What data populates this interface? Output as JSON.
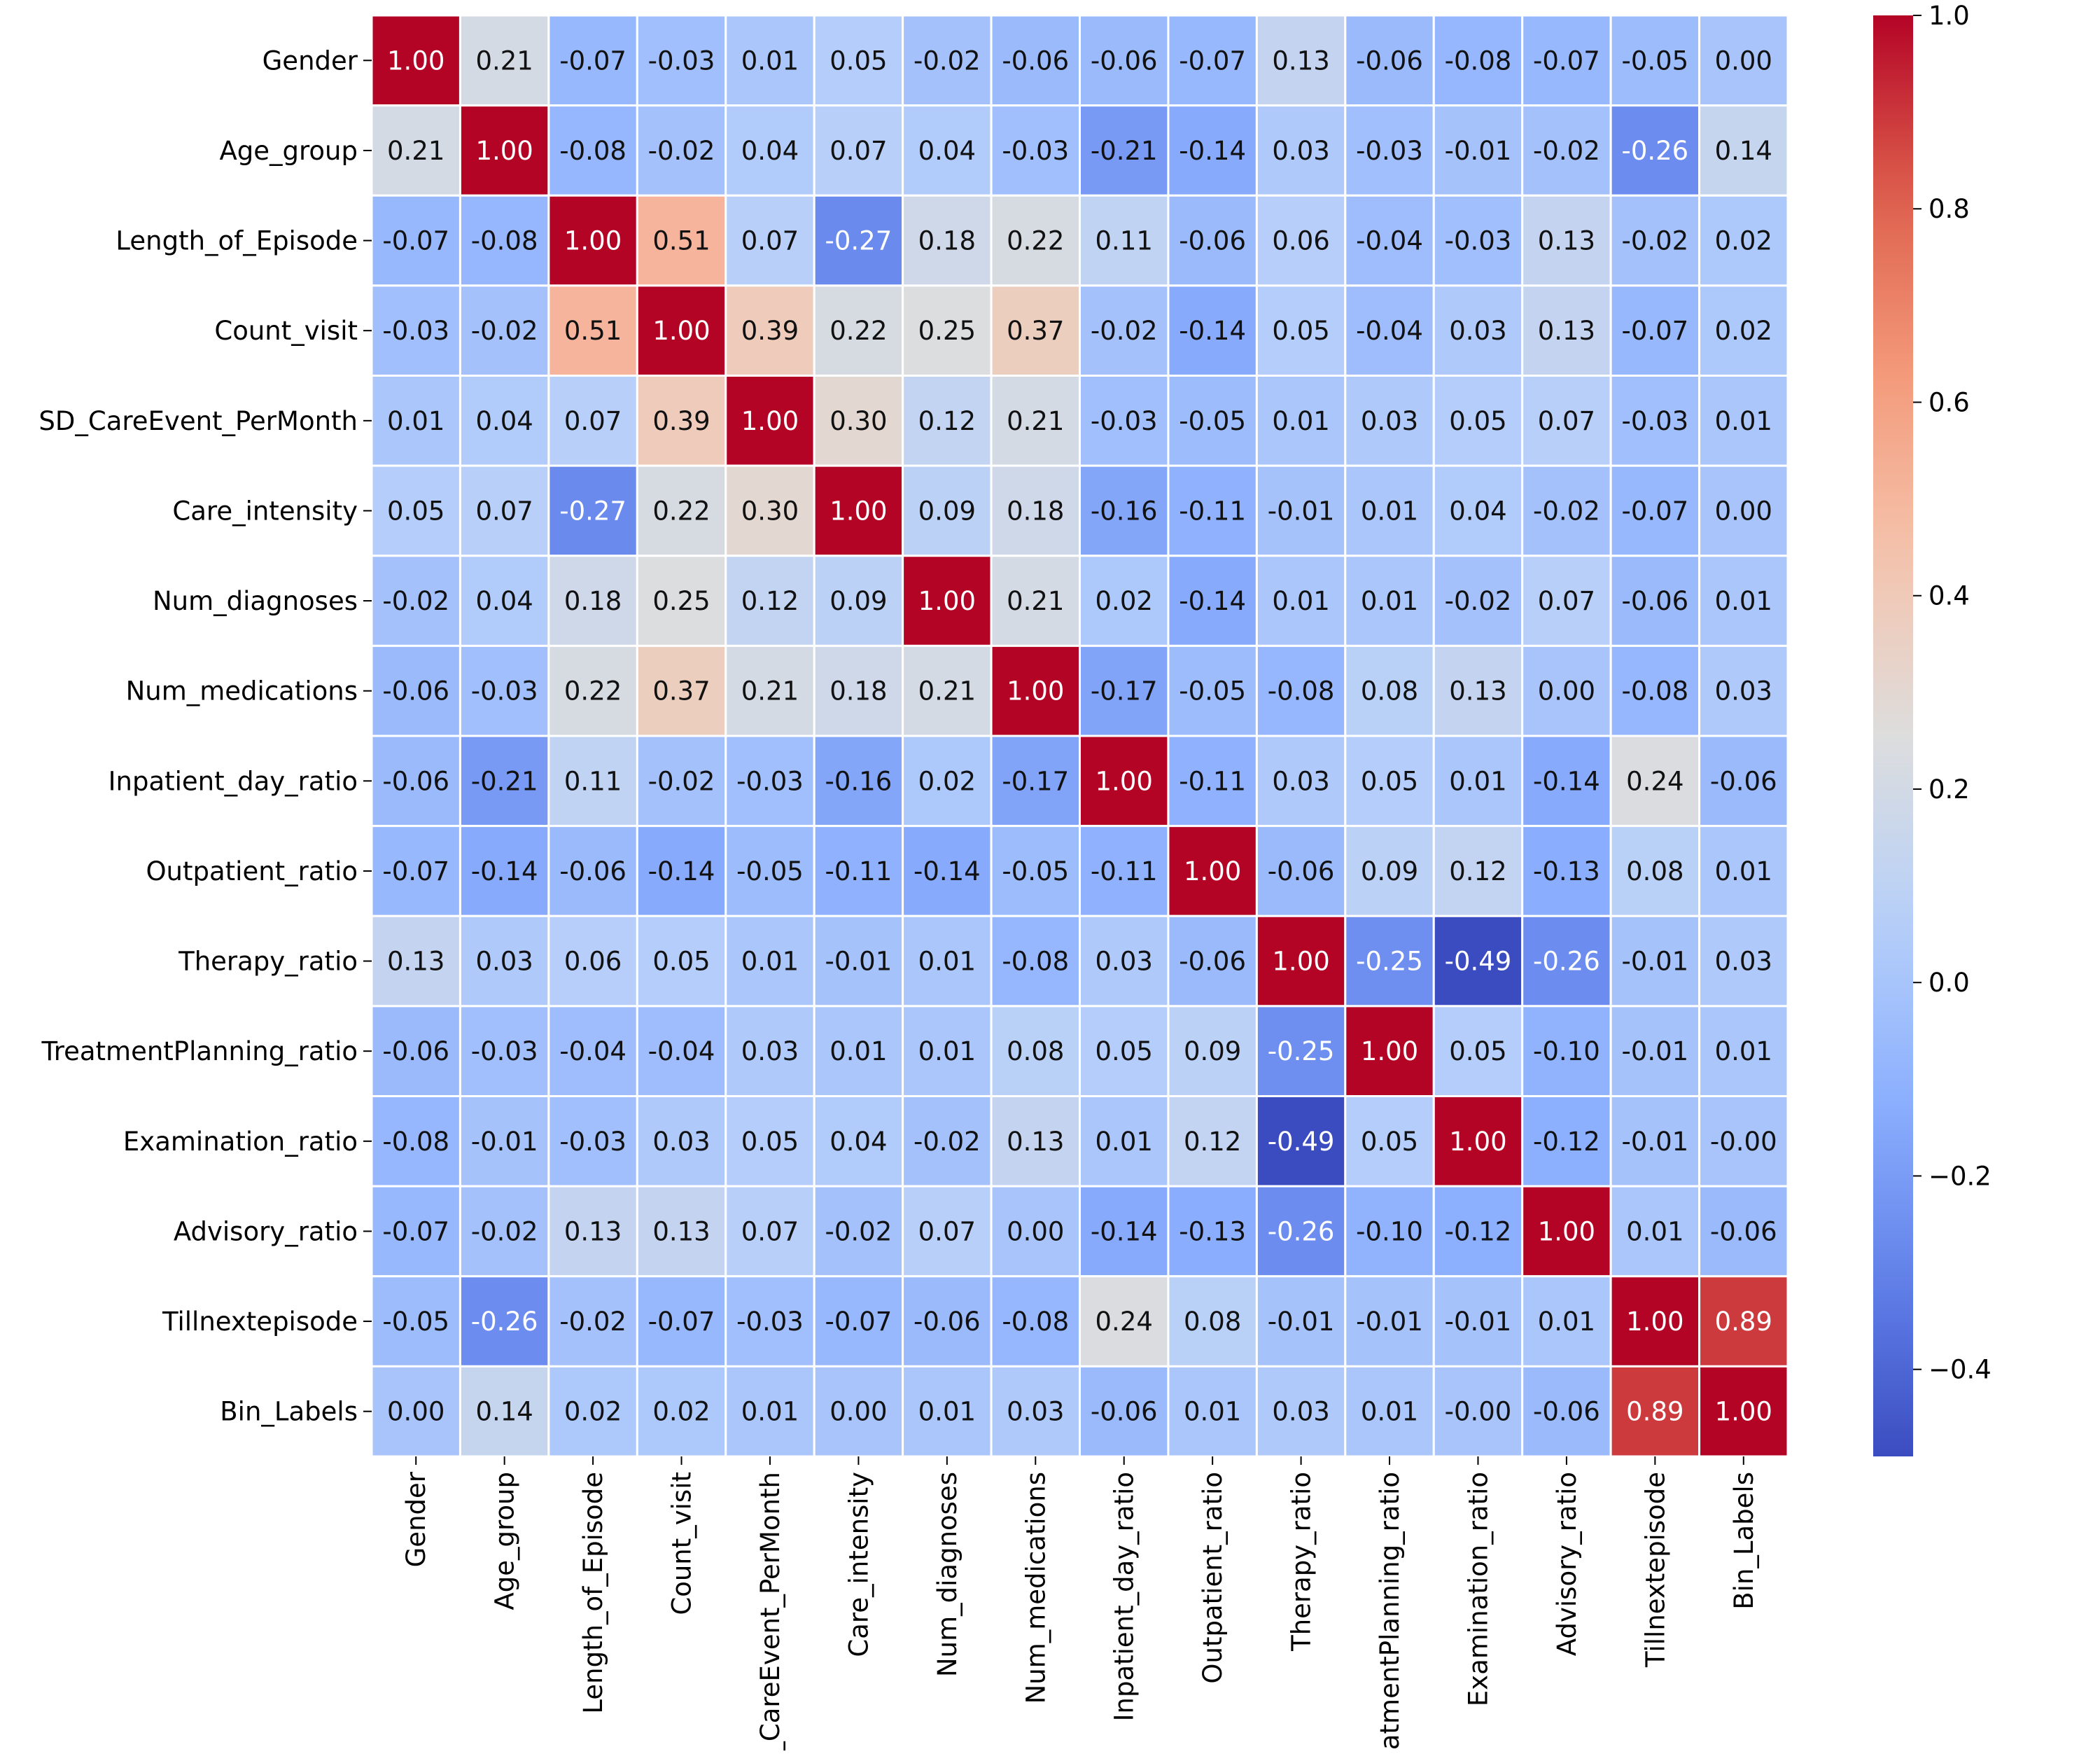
{
  "chart_data": {
    "type": "heatmap",
    "title": "",
    "xlabel": "",
    "ylabel": "",
    "value_format": "2 decimals",
    "colormap": "coolwarm",
    "vmin": -0.49,
    "vmax": 1.0,
    "colorbar_ticks": [
      "1.0",
      "0.8",
      "0.6",
      "0.4",
      "0.2",
      "0.0",
      "−0.2",
      "−0.4"
    ],
    "colorbar_tick_values": [
      1.0,
      0.8,
      0.6,
      0.4,
      0.2,
      0.0,
      -0.2,
      -0.4
    ],
    "labels": [
      "Gender",
      "Age_group",
      "Length_of_Episode",
      "Count_visit",
      "SD_CareEvent_PerMonth",
      "Care_intensity",
      "Num_diagnoses",
      "Num_medications",
      "Inpatient_day_ratio",
      "Outpatient_ratio",
      "Therapy_ratio",
      "TreatmentPlanning_ratio",
      "Examination_ratio",
      "Advisory_ratio",
      "Tillnextepisode",
      "Bin_Labels"
    ],
    "matrix": [
      [
        1.0,
        0.21,
        -0.07,
        -0.03,
        0.01,
        0.05,
        -0.02,
        -0.06,
        -0.06,
        -0.07,
        0.13,
        -0.06,
        -0.08,
        -0.07,
        -0.05,
        0.0
      ],
      [
        0.21,
        1.0,
        -0.08,
        -0.02,
        0.04,
        0.07,
        0.04,
        -0.03,
        -0.21,
        -0.14,
        0.03,
        -0.03,
        -0.01,
        -0.02,
        -0.26,
        0.14
      ],
      [
        -0.07,
        -0.08,
        1.0,
        0.51,
        0.07,
        -0.27,
        0.18,
        0.22,
        0.11,
        -0.06,
        0.06,
        -0.04,
        -0.03,
        0.13,
        -0.02,
        0.02
      ],
      [
        -0.03,
        -0.02,
        0.51,
        1.0,
        0.39,
        0.22,
        0.25,
        0.37,
        -0.02,
        -0.14,
        0.05,
        -0.04,
        0.03,
        0.13,
        -0.07,
        0.02
      ],
      [
        0.01,
        0.04,
        0.07,
        0.39,
        1.0,
        0.3,
        0.12,
        0.21,
        -0.03,
        -0.05,
        0.01,
        0.03,
        0.05,
        0.07,
        -0.03,
        0.01
      ],
      [
        0.05,
        0.07,
        -0.27,
        0.22,
        0.3,
        1.0,
        0.09,
        0.18,
        -0.16,
        -0.11,
        -0.01,
        0.01,
        0.04,
        -0.02,
        -0.07,
        0.0
      ],
      [
        -0.02,
        0.04,
        0.18,
        0.25,
        0.12,
        0.09,
        1.0,
        0.21,
        0.02,
        -0.14,
        0.01,
        0.01,
        -0.02,
        0.07,
        -0.06,
        0.01
      ],
      [
        -0.06,
        -0.03,
        0.22,
        0.37,
        0.21,
        0.18,
        0.21,
        1.0,
        -0.17,
        -0.05,
        -0.08,
        0.08,
        0.13,
        0.0,
        -0.08,
        0.03
      ],
      [
        -0.06,
        -0.21,
        0.11,
        -0.02,
        -0.03,
        -0.16,
        0.02,
        -0.17,
        1.0,
        -0.11,
        0.03,
        0.05,
        0.01,
        -0.14,
        0.24,
        -0.06
      ],
      [
        -0.07,
        -0.14,
        -0.06,
        -0.14,
        -0.05,
        -0.11,
        -0.14,
        -0.05,
        -0.11,
        1.0,
        -0.06,
        0.09,
        0.12,
        -0.13,
        0.08,
        0.01
      ],
      [
        0.13,
        0.03,
        0.06,
        0.05,
        0.01,
        -0.01,
        0.01,
        -0.08,
        0.03,
        -0.06,
        1.0,
        -0.25,
        -0.49,
        -0.26,
        -0.01,
        0.03
      ],
      [
        -0.06,
        -0.03,
        -0.04,
        -0.04,
        0.03,
        0.01,
        0.01,
        0.08,
        0.05,
        0.09,
        -0.25,
        1.0,
        0.05,
        -0.1,
        -0.01,
        0.01
      ],
      [
        -0.08,
        -0.01,
        -0.03,
        0.03,
        0.05,
        0.04,
        -0.02,
        0.13,
        0.01,
        0.12,
        -0.49,
        0.05,
        1.0,
        -0.12,
        -0.01,
        -0.0
      ],
      [
        -0.07,
        -0.02,
        0.13,
        0.13,
        0.07,
        -0.02,
        0.07,
        0.0,
        -0.14,
        -0.13,
        -0.26,
        -0.1,
        -0.12,
        1.0,
        0.01,
        -0.06
      ],
      [
        -0.05,
        -0.26,
        -0.02,
        -0.07,
        -0.03,
        -0.07,
        -0.06,
        -0.08,
        0.24,
        0.08,
        -0.01,
        -0.01,
        -0.01,
        0.01,
        1.0,
        0.89
      ],
      [
        0.0,
        0.14,
        0.02,
        0.02,
        0.01,
        0.0,
        0.01,
        0.03,
        -0.06,
        0.01,
        0.03,
        0.01,
        -0.0,
        -0.06,
        0.89,
        1.0
      ]
    ],
    "cell_text": [
      [
        "1.00",
        "0.21",
        "-0.07",
        "-0.03",
        "0.01",
        "0.05",
        "-0.02",
        "-0.06",
        "-0.06",
        "-0.07",
        "0.13",
        "-0.06",
        "-0.08",
        "-0.07",
        "-0.05",
        "0.00"
      ],
      [
        "0.21",
        "1.00",
        "-0.08",
        "-0.02",
        "0.04",
        "0.07",
        "0.04",
        "-0.03",
        "-0.21",
        "-0.14",
        "0.03",
        "-0.03",
        "-0.01",
        "-0.02",
        "-0.26",
        "0.14"
      ],
      [
        "-0.07",
        "-0.08",
        "1.00",
        "0.51",
        "0.07",
        "-0.27",
        "0.18",
        "0.22",
        "0.11",
        "-0.06",
        "0.06",
        "-0.04",
        "-0.03",
        "0.13",
        "-0.02",
        "0.02"
      ],
      [
        "-0.03",
        "-0.02",
        "0.51",
        "1.00",
        "0.39",
        "0.22",
        "0.25",
        "0.37",
        "-0.02",
        "-0.14",
        "0.05",
        "-0.04",
        "0.03",
        "0.13",
        "-0.07",
        "0.02"
      ],
      [
        "0.01",
        "0.04",
        "0.07",
        "0.39",
        "1.00",
        "0.30",
        "0.12",
        "0.21",
        "-0.03",
        "-0.05",
        "0.01",
        "0.03",
        "0.05",
        "0.07",
        "-0.03",
        "0.01"
      ],
      [
        "0.05",
        "0.07",
        "-0.27",
        "0.22",
        "0.30",
        "1.00",
        "0.09",
        "0.18",
        "-0.16",
        "-0.11",
        "-0.01",
        "0.01",
        "0.04",
        "-0.02",
        "-0.07",
        "0.00"
      ],
      [
        "-0.02",
        "0.04",
        "0.18",
        "0.25",
        "0.12",
        "0.09",
        "1.00",
        "0.21",
        "0.02",
        "-0.14",
        "0.01",
        "0.01",
        "-0.02",
        "0.07",
        "-0.06",
        "0.01"
      ],
      [
        "-0.06",
        "-0.03",
        "0.22",
        "0.37",
        "0.21",
        "0.18",
        "0.21",
        "1.00",
        "-0.17",
        "-0.05",
        "-0.08",
        "0.08",
        "0.13",
        "0.00",
        "-0.08",
        "0.03"
      ],
      [
        "-0.06",
        "-0.21",
        "0.11",
        "-0.02",
        "-0.03",
        "-0.16",
        "0.02",
        "-0.17",
        "1.00",
        "-0.11",
        "0.03",
        "0.05",
        "0.01",
        "-0.14",
        "0.24",
        "-0.06"
      ],
      [
        "-0.07",
        "-0.14",
        "-0.06",
        "-0.14",
        "-0.05",
        "-0.11",
        "-0.14",
        "-0.05",
        "-0.11",
        "1.00",
        "-0.06",
        "0.09",
        "0.12",
        "-0.13",
        "0.08",
        "0.01"
      ],
      [
        "0.13",
        "0.03",
        "0.06",
        "0.05",
        "0.01",
        "-0.01",
        "0.01",
        "-0.08",
        "0.03",
        "-0.06",
        "1.00",
        "-0.25",
        "-0.49",
        "-0.26",
        "-0.01",
        "0.03"
      ],
      [
        "-0.06",
        "-0.03",
        "-0.04",
        "-0.04",
        "0.03",
        "0.01",
        "0.01",
        "0.08",
        "0.05",
        "0.09",
        "-0.25",
        "1.00",
        "0.05",
        "-0.10",
        "-0.01",
        "0.01"
      ],
      [
        "-0.08",
        "-0.01",
        "-0.03",
        "0.03",
        "0.05",
        "0.04",
        "-0.02",
        "0.13",
        "0.01",
        "0.12",
        "-0.49",
        "0.05",
        "1.00",
        "-0.12",
        "-0.01",
        "-0.00"
      ],
      [
        "-0.07",
        "-0.02",
        "0.13",
        "0.13",
        "0.07",
        "-0.02",
        "0.07",
        "0.00",
        "-0.14",
        "-0.13",
        "-0.26",
        "-0.10",
        "-0.12",
        "1.00",
        "0.01",
        "-0.06"
      ],
      [
        "-0.05",
        "-0.26",
        "-0.02",
        "-0.07",
        "-0.03",
        "-0.07",
        "-0.06",
        "-0.08",
        "0.24",
        "0.08",
        "-0.01",
        "-0.01",
        "-0.01",
        "0.01",
        "1.00",
        "0.89"
      ],
      [
        "0.00",
        "0.14",
        "0.02",
        "0.02",
        "0.01",
        "0.00",
        "0.01",
        "0.03",
        "-0.06",
        "0.01",
        "0.03",
        "0.01",
        "-0.00",
        "-0.06",
        "0.89",
        "1.00"
      ]
    ],
    "grid": false,
    "legend": "colorbar right"
  }
}
